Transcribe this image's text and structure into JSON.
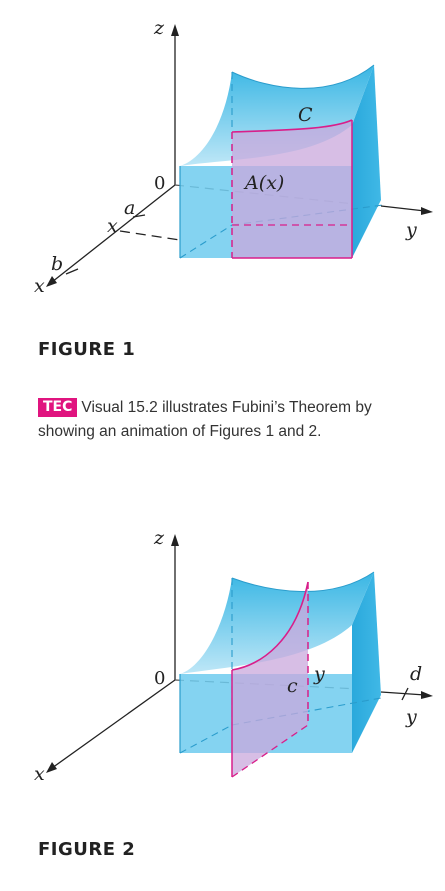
{
  "figure1": {
    "caption": "FIGURE 1",
    "labels": {
      "z": "z",
      "y": "y",
      "x_axis": "x",
      "x_slice": "x",
      "origin": "0",
      "a": "a",
      "b": "b",
      "C": "C",
      "A": "A(x)"
    },
    "colors": {
      "surface": "#4fc3e8",
      "solid": "#5bc4ea",
      "slice": "#d91e8a",
      "slice_fill": "#c9a8dc"
    }
  },
  "note": {
    "badge": "TEC",
    "text": "Visual 15.2 illustrates Fubini’s Theorem by showing an animation of Figures 1 and 2."
  },
  "figure2": {
    "caption": "FIGURE 2",
    "labels": {
      "z": "z",
      "y_axis": "y",
      "y_slice": "y",
      "x": "x",
      "origin": "0",
      "c": "c",
      "d": "d"
    },
    "colors": {
      "surface": "#4fc3e8",
      "solid": "#5bc4ea",
      "slice": "#d91e8a",
      "slice_fill": "#c9a8dc"
    }
  }
}
